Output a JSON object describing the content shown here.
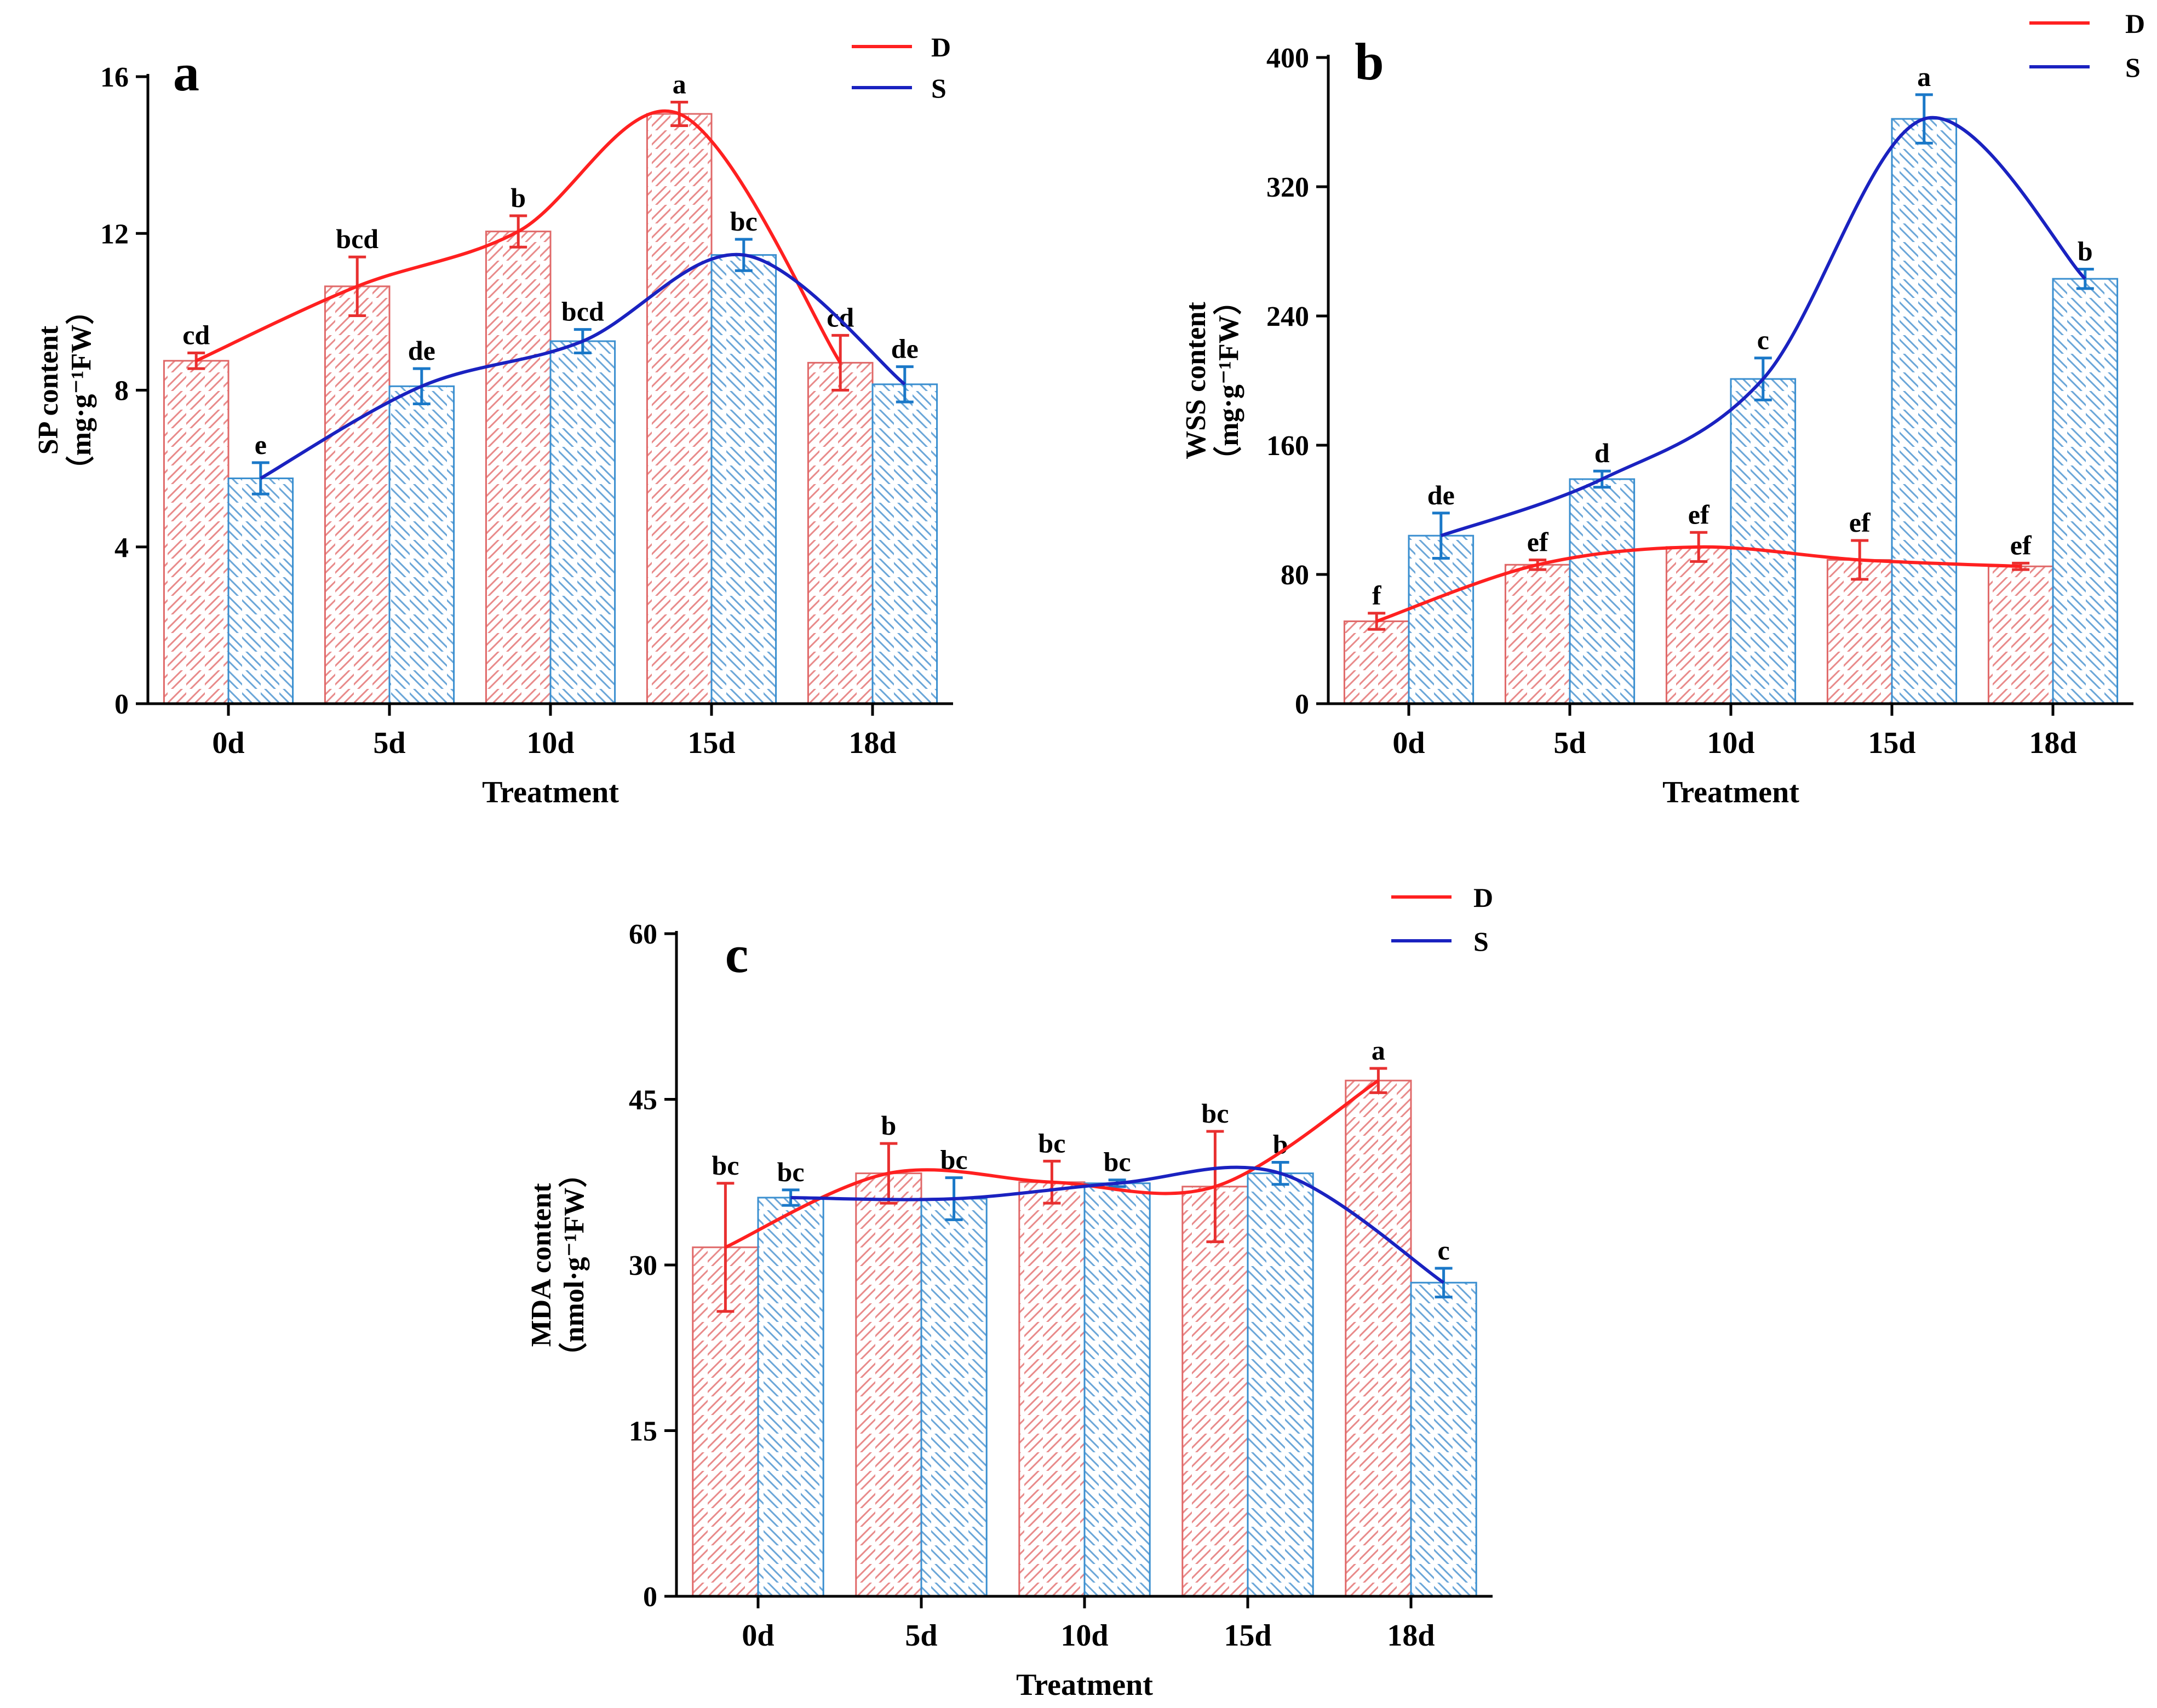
{
  "chart_data": [
    {
      "type": "bar",
      "panel": "a",
      "categories": [
        "0d",
        "5d",
        "10d",
        "15d",
        "18d"
      ],
      "xlabel": "Treatment",
      "ylabel_main": "SP content",
      "ylabel_unit": "（mg·g⁻¹FW）",
      "ylim": [
        0,
        16
      ],
      "yticks": [
        0,
        4,
        8,
        12,
        16
      ],
      "legend": [
        "D",
        "S"
      ],
      "series": [
        {
          "name": "D",
          "color": "#ff2020",
          "bar_color": "#e06868",
          "values": [
            8.75,
            10.65,
            12.05,
            15.05,
            8.7
          ],
          "errors": [
            0.2,
            0.75,
            0.4,
            0.3,
            0.7
          ],
          "labels": [
            "cd",
            "bcd",
            "b",
            "a",
            "cd"
          ]
        },
        {
          "name": "S",
          "color": "#1a22c0",
          "bar_color": "#3a8fd0",
          "values": [
            5.75,
            8.1,
            9.25,
            11.45,
            8.15
          ],
          "errors": [
            0.4,
            0.45,
            0.3,
            0.4,
            0.45
          ],
          "labels": [
            "e",
            "de",
            "bcd",
            "bc",
            "de"
          ]
        }
      ]
    },
    {
      "type": "bar",
      "panel": "b",
      "categories": [
        "0d",
        "5d",
        "10d",
        "15d",
        "18d"
      ],
      "xlabel": "Treatment",
      "ylabel_main": "WSS content",
      "ylabel_unit": "（mg·g⁻¹FW）",
      "ylim": [
        0,
        400
      ],
      "yticks": [
        0,
        80,
        160,
        240,
        320,
        400
      ],
      "legend": [
        "D",
        "S"
      ],
      "series": [
        {
          "name": "D",
          "color": "#ff2020",
          "bar_color": "#e06868",
          "values": [
            51,
            86,
            97,
            89,
            85
          ],
          "errors": [
            5,
            3,
            9,
            12,
            2
          ],
          "labels": [
            "f",
            "ef",
            "ef",
            "ef",
            "ef"
          ]
        },
        {
          "name": "S",
          "color": "#1a22c0",
          "bar_color": "#3a8fd0",
          "values": [
            104,
            139,
            201,
            362,
            263
          ],
          "errors": [
            14,
            5,
            13,
            15,
            6
          ],
          "labels": [
            "de",
            "d",
            "c",
            "a",
            "b"
          ]
        }
      ]
    },
    {
      "type": "bar",
      "panel": "c",
      "categories": [
        "0d",
        "5d",
        "10d",
        "15d",
        "18d"
      ],
      "xlabel": "Treatment",
      "ylabel_main": "MDA content",
      "ylabel_unit": "（nmol·g⁻¹FW）",
      "ylim": [
        0,
        60
      ],
      "yticks": [
        0,
        15,
        30,
        45,
        60
      ],
      "legend": [
        "D",
        "S"
      ],
      "series": [
        {
          "name": "D",
          "color": "#ff2020",
          "bar_color": "#e06868",
          "values": [
            31.6,
            38.3,
            37.5,
            37.1,
            46.7
          ],
          "errors": [
            5.8,
            2.7,
            1.9,
            5.0,
            1.1
          ],
          "labels": [
            "bc",
            "b",
            "bc",
            "bc",
            "a"
          ]
        },
        {
          "name": "S",
          "color": "#1a22c0",
          "bar_color": "#3a8fd0",
          "values": [
            36.1,
            36.0,
            37.4,
            38.3,
            28.4
          ],
          "errors": [
            0.7,
            1.9,
            0.3,
            1.0,
            1.3
          ],
          "labels": [
            "bc",
            "bc",
            "bc",
            "b",
            "c"
          ]
        }
      ]
    }
  ]
}
